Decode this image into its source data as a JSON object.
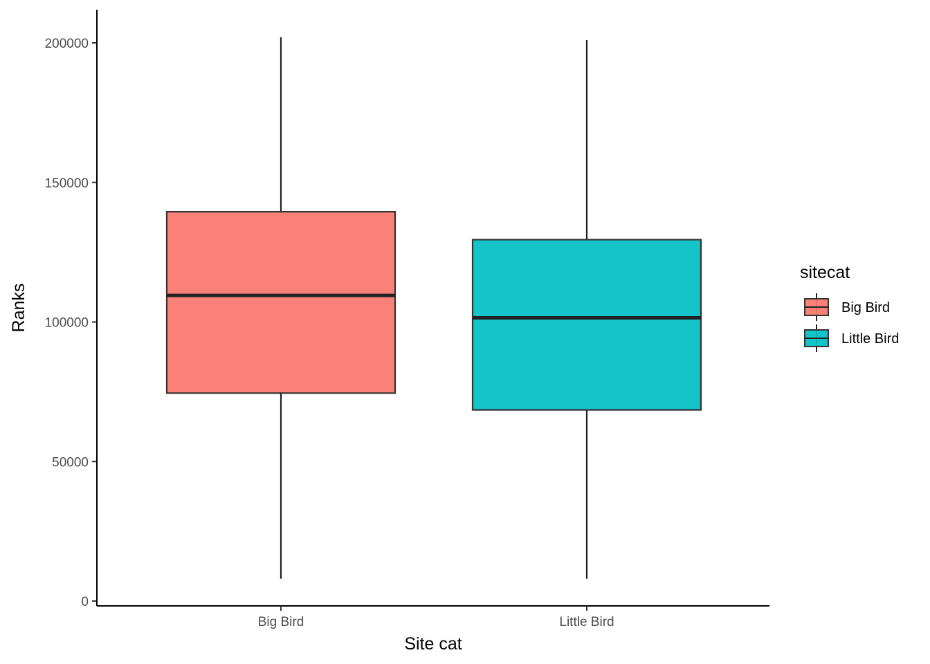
{
  "chart_data": {
    "type": "boxplot",
    "xlabel": "Site cat",
    "ylabel": "Ranks",
    "categories": [
      "Big Bird",
      "Little Bird"
    ],
    "ylim": [
      -2000,
      213000
    ],
    "y_ticks": [
      0,
      50000,
      100000,
      150000,
      200000
    ],
    "y_tick_labels": [
      "0",
      "50000",
      "100000",
      "150000",
      "200000"
    ],
    "boxes": [
      {
        "category": "Big Bird",
        "whisker_low": 8000,
        "q1": 74500,
        "median": 109500,
        "q3": 139500,
        "whisker_high": 202000,
        "color": "#F8766D"
      },
      {
        "category": "Little Bird",
        "whisker_low": 8000,
        "q1": 68500,
        "median": 101500,
        "q3": 129500,
        "whisker_high": 201000,
        "color": "#00BFC4"
      }
    ],
    "legend": {
      "title": "sitecat",
      "placement": "right",
      "entries": [
        {
          "label": "Big Bird",
          "color": "#F8766D"
        },
        {
          "label": "Little Bird",
          "color": "#00BFC4"
        }
      ]
    },
    "grid": false
  }
}
